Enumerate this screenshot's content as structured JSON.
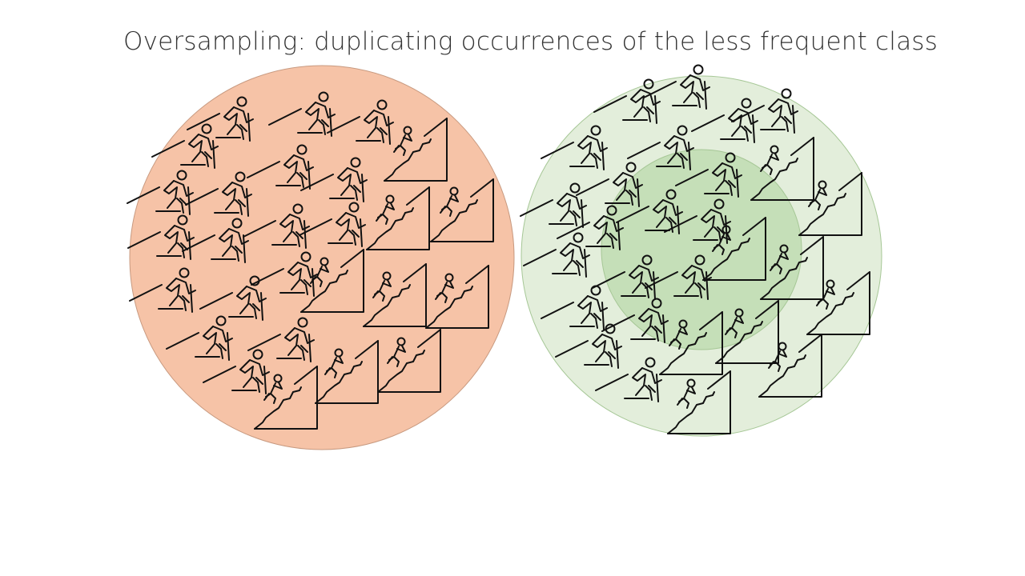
{
  "slide": {
    "title": "Oversampling: duplicating occurrences of the less frequent class"
  },
  "left_group": {
    "description_colors": {
      "fill": "#f6c3a7",
      "stroke": "#c89a80"
    },
    "icons": {
      "majority": "hiker-icon",
      "minority": "climber-icon"
    }
  },
  "right_group": {
    "description_colors": {
      "outer_fill": "#e3eedb",
      "inner_fill": "#c5dfb8",
      "stroke": "#a6c796"
    },
    "icons": {
      "majority": "hiker-icon",
      "minority": "climber-icon"
    }
  }
}
